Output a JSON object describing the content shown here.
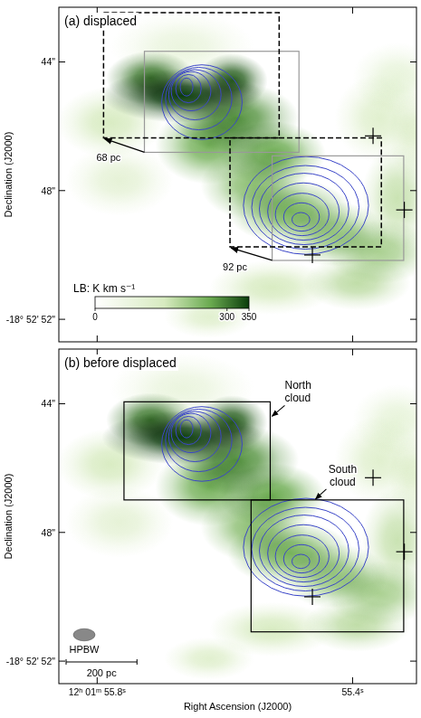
{
  "chart_data": [
    {
      "type": "map",
      "title": "(a) displaced",
      "y_label": "Declination (J2000)",
      "xlim": [
        55.86,
        55.3
      ],
      "ylim": [
        42.3,
        52.7
      ],
      "xticks": [
        55.8,
        55.4
      ],
      "yticks": [
        {
          "value": 44,
          "label": "44\""
        },
        {
          "value": 48,
          "label": "48\""
        },
        {
          "value": 52,
          "label": "-18° 52' 52\""
        }
      ],
      "tick_labels": "y",
      "colorbar": {
        "label": "LB: K km s⁻¹",
        "range": [
          0,
          350
        ],
        "ticks": [
          0,
          300,
          350
        ]
      },
      "emission": [
        {
          "ra": 55.667,
          "dec": 45.05,
          "peak": 350,
          "ra_half": 0.063,
          "dec_half": 0.42
        },
        {
          "ra": 55.716,
          "dec": 44.5,
          "peak": 300,
          "ra_half": 0.035,
          "dec_half": 0.42
        },
        {
          "ra": 55.589,
          "dec": 44.58,
          "peak": 320,
          "ra_half": 0.028,
          "dec_half": 0.42
        },
        {
          "ra": 55.582,
          "dec": 45.75,
          "peak": 280,
          "ra_half": 0.049,
          "dec_half": 0.55
        },
        {
          "ra": 55.625,
          "dec": 46.58,
          "peak": 250,
          "ra_half": 0.042,
          "dec_half": 0.61
        },
        {
          "ra": 55.526,
          "dec": 46.85,
          "peak": 260,
          "ra_half": 0.042,
          "dec_half": 0.5
        },
        {
          "ra": 55.554,
          "dec": 47.82,
          "peak": 230,
          "ra_half": 0.042,
          "dec_half": 0.55
        },
        {
          "ra": 55.498,
          "dec": 48.65,
          "peak": 250,
          "ra_half": 0.049,
          "dec_half": 0.5
        },
        {
          "ra": 55.428,
          "dec": 49.35,
          "peak": 220,
          "ra_half": 0.042,
          "dec_half": 0.5
        },
        {
          "ra": 55.358,
          "dec": 49.9,
          "peak": 200,
          "ra_half": 0.042,
          "dec_half": 0.5
        },
        {
          "ra": 55.393,
          "dec": 50.87,
          "peak": 180,
          "ra_half": 0.042,
          "dec_half": 0.42
        },
        {
          "ra": 55.526,
          "dec": 51.01,
          "peak": 150,
          "ra_half": 0.049,
          "dec_half": 0.42
        },
        {
          "ra": 55.625,
          "dec": 51.92,
          "peak": 120,
          "ra_half": 0.035,
          "dec_half": 0.33
        },
        {
          "ra": 55.33,
          "dec": 48.24,
          "peak": 170,
          "ra_half": 0.028,
          "dec_half": 0.83
        },
        {
          "ra": 55.358,
          "dec": 45.75,
          "peak": 120,
          "ra_half": 0.035,
          "dec_half": 0.69
        },
        {
          "ra": 55.779,
          "dec": 45.88,
          "peak": 150,
          "ra_half": 0.042,
          "dec_half": 0.55
        },
        {
          "ra": 55.765,
          "dec": 47.68,
          "peak": 100,
          "ra_half": 0.042,
          "dec_half": 0.55
        },
        {
          "ra": 55.33,
          "dec": 44.5,
          "peak": 90,
          "ra_half": 0.035,
          "dec_half": 0.55
        },
        {
          "ra": 55.667,
          "dec": 43.53,
          "peak": 80,
          "ra_half": 0.056,
          "dec_half": 0.55
        },
        {
          "ra": 55.302,
          "dec": 46.3,
          "peak": 100,
          "ra_half": 0.021,
          "dec_half": 0.69
        }
      ],
      "contours": {
        "color": "#3b46c8",
        "levels": [
          {
            "ra": 55.636,
            "dec": 45.25,
            "ra_half": 0.063,
            "dec_half": 1.16
          },
          {
            "ra": 55.641,
            "dec": 45.14,
            "ra_half": 0.052,
            "dec_half": 0.97
          },
          {
            "ra": 55.647,
            "dec": 45.02,
            "ra_half": 0.041,
            "dec_half": 0.78
          },
          {
            "ra": 55.653,
            "dec": 44.91,
            "ra_half": 0.031,
            "dec_half": 0.61
          },
          {
            "ra": 55.657,
            "dec": 44.83,
            "ra_half": 0.02,
            "dec_half": 0.44
          },
          {
            "ra": 55.66,
            "dec": 44.78,
            "ra_half": 0.01,
            "dec_half": 0.28
          },
          {
            "ra": 55.473,
            "dec": 48.46,
            "ra_half": 0.098,
            "dec_half": 1.52
          },
          {
            "ra": 55.474,
            "dec": 48.52,
            "ra_half": 0.084,
            "dec_half": 1.3
          },
          {
            "ra": 55.476,
            "dec": 48.57,
            "ra_half": 0.07,
            "dec_half": 1.11
          },
          {
            "ra": 55.477,
            "dec": 48.65,
            "ra_half": 0.056,
            "dec_half": 0.89
          },
          {
            "ra": 55.479,
            "dec": 48.74,
            "ra_half": 0.042,
            "dec_half": 0.66
          },
          {
            "ra": 55.48,
            "dec": 48.82,
            "ra_half": 0.028,
            "dec_half": 0.44
          },
          {
            "ra": 55.481,
            "dec": 48.9,
            "ra_half": 0.014,
            "dec_half": 0.22
          }
        ]
      },
      "boxes": [
        {
          "ra": [
            55.726,
            55.484
          ],
          "dec": [
            43.67,
            46.81
          ],
          "line_style": "solid",
          "color": "#999999"
        },
        {
          "ra": [
            55.526,
            55.32
          ],
          "dec": [
            46.92,
            50.17
          ],
          "line_style": "solid",
          "color": "#999999"
        }
      ],
      "displaced_boxes": [
        {
          "ra": [
            55.79,
            55.515
          ],
          "dec": [
            42.47,
            46.36
          ],
          "line_style": "dashed",
          "color": "#000000",
          "label": "68 pc"
        },
        {
          "ra": [
            55.592,
            55.355
          ],
          "dec": [
            46.36,
            49.75
          ],
          "line_style": "dashed",
          "color": "#000000",
          "label": "92 pc"
        }
      ],
      "crosses": [
        {
          "ra": 55.368,
          "dec": 46.3
        },
        {
          "ra": 55.319,
          "dec": 48.6
        },
        {
          "ra": 55.463,
          "dec": 50.0
        }
      ]
    },
    {
      "type": "map",
      "title": "(b) before displaced",
      "x_label": "Right Ascension (J2000)",
      "y_label": "Declination (J2000)",
      "xlim": [
        55.86,
        55.3
      ],
      "ylim": [
        42.3,
        52.7
      ],
      "xticks": [
        {
          "value": 55.8,
          "label": "12ʰ 01ᵐ 55.8ˢ"
        },
        {
          "value": 55.4,
          "label": "55.4ˢ"
        }
      ],
      "yticks": [
        {
          "value": 44,
          "label": "44\""
        },
        {
          "value": 48,
          "label": "48\""
        },
        {
          "value": 52,
          "label": "-18° 52' 52\""
        }
      ],
      "tick_labels": true,
      "emission": [
        {
          "ra": 55.667,
          "dec": 45.05,
          "peak": 350,
          "ra_half": 0.063,
          "dec_half": 0.42
        },
        {
          "ra": 55.716,
          "dec": 44.5,
          "peak": 300,
          "ra_half": 0.035,
          "dec_half": 0.42
        },
        {
          "ra": 55.589,
          "dec": 44.58,
          "peak": 320,
          "ra_half": 0.028,
          "dec_half": 0.42
        },
        {
          "ra": 55.582,
          "dec": 45.75,
          "peak": 280,
          "ra_half": 0.049,
          "dec_half": 0.55
        },
        {
          "ra": 55.625,
          "dec": 46.58,
          "peak": 250,
          "ra_half": 0.042,
          "dec_half": 0.61
        },
        {
          "ra": 55.526,
          "dec": 46.85,
          "peak": 260,
          "ra_half": 0.042,
          "dec_half": 0.5
        },
        {
          "ra": 55.554,
          "dec": 47.82,
          "peak": 230,
          "ra_half": 0.042,
          "dec_half": 0.55
        },
        {
          "ra": 55.498,
          "dec": 48.65,
          "peak": 250,
          "ra_half": 0.049,
          "dec_half": 0.5
        },
        {
          "ra": 55.428,
          "dec": 49.35,
          "peak": 220,
          "ra_half": 0.042,
          "dec_half": 0.5
        },
        {
          "ra": 55.358,
          "dec": 49.9,
          "peak": 200,
          "ra_half": 0.042,
          "dec_half": 0.5
        },
        {
          "ra": 55.393,
          "dec": 50.87,
          "peak": 180,
          "ra_half": 0.042,
          "dec_half": 0.42
        },
        {
          "ra": 55.526,
          "dec": 51.01,
          "peak": 150,
          "ra_half": 0.049,
          "dec_half": 0.42
        },
        {
          "ra": 55.625,
          "dec": 51.92,
          "peak": 120,
          "ra_half": 0.035,
          "dec_half": 0.33
        },
        {
          "ra": 55.33,
          "dec": 48.24,
          "peak": 170,
          "ra_half": 0.028,
          "dec_half": 0.83
        },
        {
          "ra": 55.358,
          "dec": 45.75,
          "peak": 120,
          "ra_half": 0.035,
          "dec_half": 0.69
        },
        {
          "ra": 55.779,
          "dec": 45.88,
          "peak": 150,
          "ra_half": 0.042,
          "dec_half": 0.55
        },
        {
          "ra": 55.765,
          "dec": 47.68,
          "peak": 100,
          "ra_half": 0.042,
          "dec_half": 0.55
        },
        {
          "ra": 55.33,
          "dec": 44.5,
          "peak": 90,
          "ra_half": 0.035,
          "dec_half": 0.55
        },
        {
          "ra": 55.667,
          "dec": 43.53,
          "peak": 80,
          "ra_half": 0.056,
          "dec_half": 0.55
        },
        {
          "ra": 55.302,
          "dec": 46.3,
          "peak": 100,
          "ra_half": 0.021,
          "dec_half": 0.69
        }
      ],
      "contours": {
        "color": "#3b46c8",
        "levels": [
          {
            "ra": 55.636,
            "dec": 45.25,
            "ra_half": 0.063,
            "dec_half": 1.16
          },
          {
            "ra": 55.641,
            "dec": 45.14,
            "ra_half": 0.052,
            "dec_half": 0.97
          },
          {
            "ra": 55.647,
            "dec": 45.02,
            "ra_half": 0.041,
            "dec_half": 0.78
          },
          {
            "ra": 55.653,
            "dec": 44.91,
            "ra_half": 0.031,
            "dec_half": 0.61
          },
          {
            "ra": 55.657,
            "dec": 44.83,
            "ra_half": 0.02,
            "dec_half": 0.44
          },
          {
            "ra": 55.66,
            "dec": 44.78,
            "ra_half": 0.01,
            "dec_half": 0.28
          },
          {
            "ra": 55.473,
            "dec": 48.46,
            "ra_half": 0.098,
            "dec_half": 1.52
          },
          {
            "ra": 55.474,
            "dec": 48.52,
            "ra_half": 0.084,
            "dec_half": 1.3
          },
          {
            "ra": 55.476,
            "dec": 48.57,
            "ra_half": 0.07,
            "dec_half": 1.11
          },
          {
            "ra": 55.477,
            "dec": 48.65,
            "ra_half": 0.056,
            "dec_half": 0.89
          },
          {
            "ra": 55.479,
            "dec": 48.74,
            "ra_half": 0.042,
            "dec_half": 0.66
          },
          {
            "ra": 55.48,
            "dec": 48.82,
            "ra_half": 0.028,
            "dec_half": 0.44
          },
          {
            "ra": 55.481,
            "dec": 48.9,
            "ra_half": 0.014,
            "dec_half": 0.22
          }
        ]
      },
      "boxes": [
        {
          "ra": [
            55.758,
            55.529
          ],
          "dec": [
            43.94,
            46.99
          ],
          "line_style": "solid",
          "color": "#000000",
          "label": "North cloud"
        },
        {
          "ra": [
            55.559,
            55.32
          ],
          "dec": [
            46.99,
            51.09
          ],
          "line_style": "solid",
          "color": "#000000",
          "label": "South cloud"
        }
      ],
      "crosses": [
        {
          "ra": 55.368,
          "dec": 46.3
        },
        {
          "ra": 55.319,
          "dec": 48.6
        },
        {
          "ra": 55.463,
          "dec": 50.0
        }
      ],
      "beam": {
        "label": "HPBW",
        "ra_half": 0.017,
        "dec_half": 0.19
      },
      "scale_bar": {
        "label": "200 pc",
        "ra_length": 0.111
      }
    }
  ]
}
